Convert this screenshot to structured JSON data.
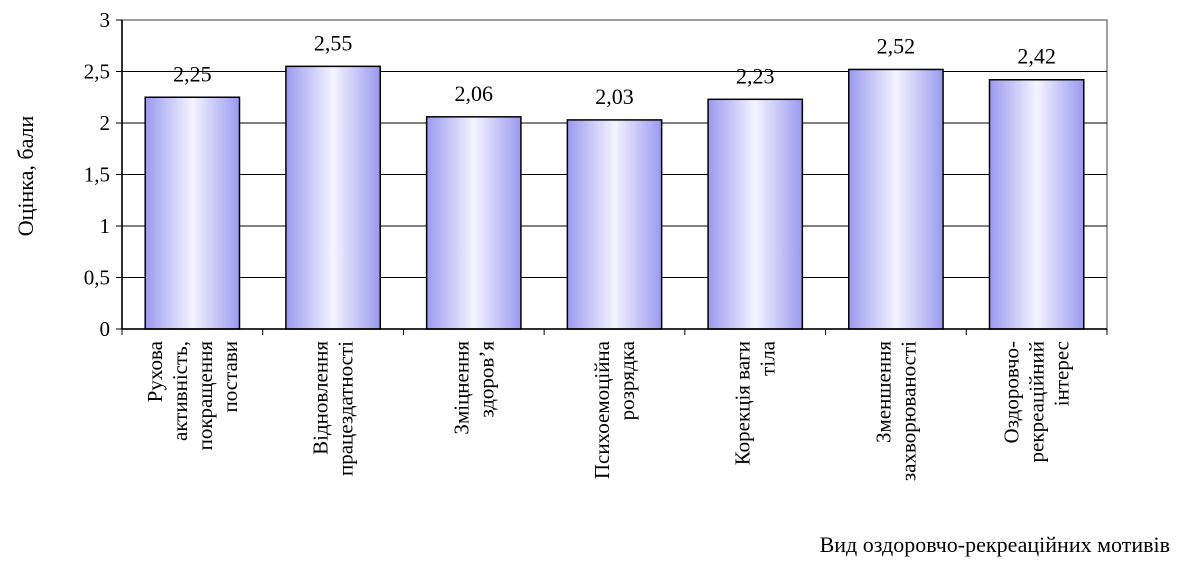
{
  "chart_data": {
    "type": "bar",
    "title": "",
    "ylabel": "Оцінка, бали",
    "xlabel": "Вид оздоровчо-рекреаційних мотивів",
    "ylim": [
      0,
      3
    ],
    "yticks": [
      0,
      0.5,
      1,
      1.5,
      2,
      2.5,
      3
    ],
    "ytick_labels": [
      "0",
      "0,5",
      "1",
      "1,5",
      "2",
      "2,5",
      "3"
    ],
    "grid": true,
    "categories": [
      [
        "Рухова",
        "активність,",
        "покращення",
        "постави"
      ],
      [
        "Відновлення",
        "працездатності"
      ],
      [
        "Зміцнення",
        "здоров’я"
      ],
      [
        "Психоемоційна",
        "розрядка"
      ],
      [
        "Корекція  ваги",
        "тіла"
      ],
      [
        "Зменшення",
        "захворюваності"
      ],
      [
        "Оздоровчо-",
        "рекреаційний",
        "інтерес"
      ]
    ],
    "values": [
      2.25,
      2.55,
      2.06,
      2.03,
      2.23,
      2.52,
      2.42
    ],
    "value_labels": [
      "2,25",
      "2,55",
      "2,06",
      "2,03",
      "2,23",
      "2,52",
      "2,42"
    ],
    "bar_color": "#9A9AF0",
    "bar_highlight": "#F4F4FF"
  }
}
